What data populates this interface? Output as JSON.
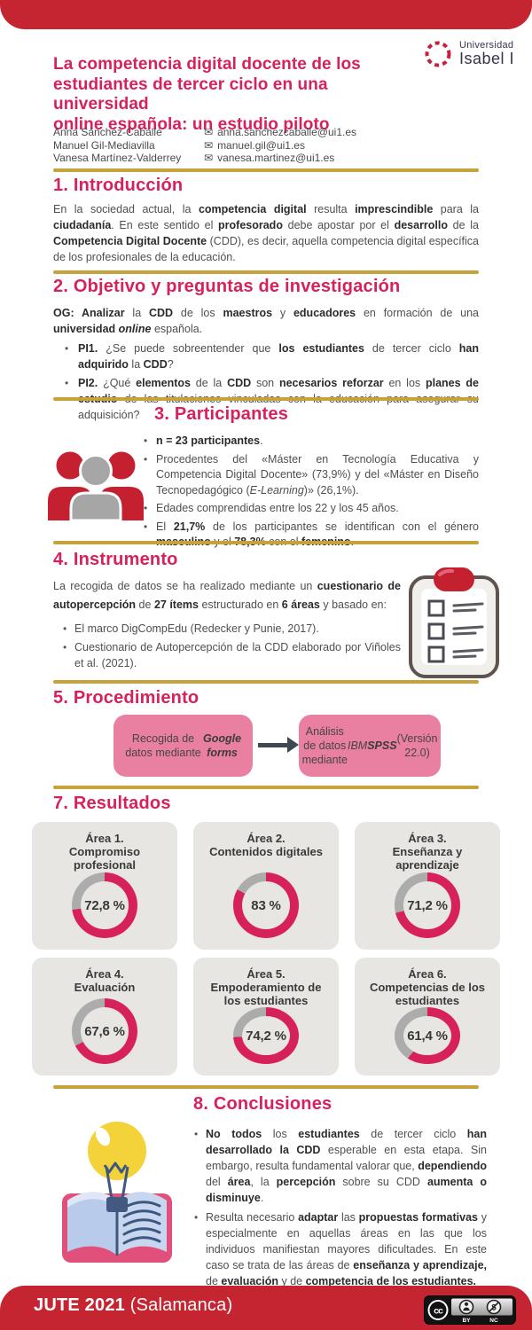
{
  "colors": {
    "bar_red": "#C52531",
    "heading_pink": "#D7215A",
    "gold_divider": "#C7A23B",
    "card_gray": "#E8E6E2",
    "box_pink": "#E980A1",
    "arrow_slate": "#3D4852",
    "body_text": "#4F4F4F",
    "logo_navy": "#35354A"
  },
  "header": {
    "logo": {
      "line1": "Universidad",
      "line2": "Isabel I"
    },
    "title_lines": [
      "La competencia digital docente de los",
      "estudiantes de tercer ciclo en una universidad",
      "online española: un estudio piloto"
    ],
    "authors": [
      {
        "name": "Anna Sánchez-Caballé",
        "email": "anna.sanchezcaballe@ui1.es"
      },
      {
        "name": "Manuel Gil-Mediavilla",
        "email": "manuel.gil@ui1.es"
      },
      {
        "name": "Vanesa Martínez-Valderrey",
        "email": "vanesa.martinez@ui1.es"
      }
    ],
    "email_icon_glyph": "✉"
  },
  "sections": {
    "intro": {
      "heading": "1. Introducción",
      "paragraph": [
        {
          "t": "En la sociedad actual, la "
        },
        {
          "t": "competencia digital",
          "s": "b"
        },
        {
          "t": " resulta "
        },
        {
          "t": "imprescindible",
          "s": "b"
        },
        {
          "t": " para la "
        },
        {
          "t": "ciudadanía",
          "s": "b"
        },
        {
          "t": ". En este sentido el "
        },
        {
          "t": "profesorado",
          "s": "b"
        },
        {
          "t": " debe apostar por el "
        },
        {
          "t": "desarrollo",
          "s": "b"
        },
        {
          "t": " de la "
        },
        {
          "t": "Competencia Digital Docente",
          "s": "b"
        },
        {
          "t": " (CDD), es decir, aquella competencia digital específica de los profesionales de la educación."
        }
      ]
    },
    "objetivo": {
      "heading": "2. Objetivo y preguntas de investigación",
      "lead": [
        {
          "t": "OG: Analizar",
          "s": "b"
        },
        {
          "t": " la "
        },
        {
          "t": "CDD",
          "s": "b"
        },
        {
          "t": " de los "
        },
        {
          "t": "maestros",
          "s": "b"
        },
        {
          "t": " y "
        },
        {
          "t": "educadores",
          "s": "b"
        },
        {
          "t": " en formación de una "
        },
        {
          "t": "universidad",
          "s": "b"
        },
        {
          "t": " "
        },
        {
          "t": "online",
          "s": "bi"
        },
        {
          "t": " española."
        }
      ],
      "bullets": [
        [
          {
            "t": "PI1.",
            "s": "b"
          },
          {
            "t": " ¿Se puede sobreentender que "
          },
          {
            "t": "los estudiantes",
            "s": "b"
          },
          {
            "t": " de tercer ciclo "
          },
          {
            "t": "han adquirido",
            "s": "b"
          },
          {
            "t": " la "
          },
          {
            "t": "CDD",
            "s": "b"
          },
          {
            "t": "?"
          }
        ],
        [
          {
            "t": "PI2.",
            "s": "b"
          },
          {
            "t": " ¿Qué "
          },
          {
            "t": "elementos",
            "s": "b"
          },
          {
            "t": " de la "
          },
          {
            "t": "CDD",
            "s": "b"
          },
          {
            "t": " son "
          },
          {
            "t": "necesarios reforzar",
            "s": "b"
          },
          {
            "t": " en los "
          },
          {
            "t": "planes de estudio",
            "s": "b"
          },
          {
            "t": " de las titulaciones vinculadas con la educación para asegurar su adquisición?"
          }
        ]
      ]
    },
    "participantes": {
      "heading": "3. Participantes",
      "bullets": [
        [
          {
            "t": "n = 23 participantes",
            "s": "b"
          },
          {
            "t": "."
          }
        ],
        [
          {
            "t": "Procedentes del «Máster en Tecnología Educativa y Competencia Digital Docente» (73,9%) y del «Máster en Diseño Tecnopedagógico ("
          },
          {
            "t": "E-Learning",
            "s": "i"
          },
          {
            "t": ")» (26,1%)."
          }
        ],
        [
          {
            "t": "Edades comprendidas entre los 22 y los 45 años."
          }
        ],
        [
          {
            "t": "El "
          },
          {
            "t": "21,7%",
            "s": "b"
          },
          {
            "t": " de los participantes se identifican con el género "
          },
          {
            "t": "masculino",
            "s": "b"
          },
          {
            "t": " y el "
          },
          {
            "t": "78,3%",
            "s": "b"
          },
          {
            "t": " con el "
          },
          {
            "t": "femenino",
            "s": "b"
          },
          {
            "t": "."
          }
        ]
      ]
    },
    "instrumento": {
      "heading": "4. Instrumento",
      "lead": [
        {
          "t": "La recogida de datos se ha realizado mediante un "
        },
        {
          "t": "cuestionario de autopercepción",
          "s": "b"
        },
        {
          "t": " de "
        },
        {
          "t": "27 ítems",
          "s": "b"
        },
        {
          "t": " estructurado en "
        },
        {
          "t": "6 áreas",
          "s": "b"
        },
        {
          "t": " y basado en:"
        }
      ],
      "bullets": [
        [
          {
            "t": "El marco DigCompEdu (Redecker y Punie, 2017)."
          }
        ],
        [
          {
            "t": "Cuestionario de Autopercepción de la CDD elaborado por Viñoles et al. (2021)."
          }
        ]
      ]
    },
    "procedimiento": {
      "heading": "5. Procedimiento",
      "box1": [
        {
          "t": "Recogida de datos mediante "
        },
        {
          "t": "Google forms",
          "s": "bi"
        }
      ],
      "box2": [
        {
          "t": "Análisis de datos mediante "
        },
        {
          "t": "IBM",
          "s": "i"
        },
        {
          "t": " "
        },
        {
          "t": "SPSS",
          "s": "bi"
        },
        {
          "t": " (Versión 22.0)"
        }
      ]
    },
    "resultados": {
      "heading": "7. Resultados"
    },
    "conclusiones": {
      "heading": "8. Conclusiones",
      "bullets": [
        [
          {
            "t": "No todos",
            "s": "b"
          },
          {
            "t": " los "
          },
          {
            "t": "estudiantes",
            "s": "b"
          },
          {
            "t": " de tercer ciclo "
          },
          {
            "t": "han desarrollado la CDD",
            "s": "b"
          },
          {
            "t": " esperable en esta etapa. Sin embargo, resulta fundamental valorar que, "
          },
          {
            "t": "dependiendo",
            "s": "b"
          },
          {
            "t": " del "
          },
          {
            "t": "área",
            "s": "b"
          },
          {
            "t": ", la "
          },
          {
            "t": "percepción",
            "s": "b"
          },
          {
            "t": " sobre su CDD "
          },
          {
            "t": "aumenta o disminuye",
            "s": "b"
          },
          {
            "t": "."
          }
        ],
        [
          {
            "t": "Resulta necesario "
          },
          {
            "t": "adaptar",
            "s": "b"
          },
          {
            "t": " las "
          },
          {
            "t": "propuestas formativas",
            "s": "b"
          },
          {
            "t": " y especialmente en aquellas áreas en las que los individuos manifiestan mayores dificultades. En este caso se trata de las áreas de "
          },
          {
            "t": "enseñanza y aprendizaje,",
            "s": "b"
          },
          {
            "t": " de "
          },
          {
            "t": "evaluación",
            "s": "b"
          },
          {
            "t": " y de "
          },
          {
            "t": "competencia de los estudiantes.",
            "s": "b"
          }
        ]
      ]
    }
  },
  "chart_data": {
    "type": "pie",
    "subtype": "donut-gauges",
    "title": "7. Resultados",
    "categories": [
      "Área 1. Compromiso profesional",
      "Área 2. Contenidos digitales",
      "Área 3. Enseñanza y aprendizaje",
      "Área 4. Evaluación",
      "Área 5. Empoderamiento de los estudiantes",
      "Área 6. Competencias de los estudiantes"
    ],
    "values": [
      72.8,
      83,
      71.2,
      67.6,
      74.2,
      61.4
    ],
    "unit": "%",
    "colors": {
      "filled": "#D7215A",
      "remainder": "#ACACAC"
    },
    "gauges": [
      {
        "title_lines": [
          "Área 1.",
          "Compromiso",
          "profesional"
        ],
        "value": 72.8,
        "label": "72,8 %"
      },
      {
        "title_lines": [
          "Área 2.",
          "Contenidos digitales"
        ],
        "value": 83,
        "label": "83 %"
      },
      {
        "title_lines": [
          "Área 3.",
          "Enseñanza y",
          "aprendizaje"
        ],
        "value": 71.2,
        "label": "71,2 %"
      },
      {
        "title_lines": [
          "Área 4.",
          "Evaluación"
        ],
        "value": 67.6,
        "label": "67,6 %"
      },
      {
        "title_lines": [
          "Área 5.",
          "Empoderamiento de",
          "los estudiantes"
        ],
        "value": 74.2,
        "label": "74,2 %"
      },
      {
        "title_lines": [
          "Área 6.",
          "Competencias de los",
          "estudiantes"
        ],
        "value": 61.4,
        "label": "61,4 %"
      }
    ]
  },
  "footer": {
    "text": [
      {
        "t": "JUTE 2021 ",
        "s": "b"
      },
      {
        "t": "(Salamanca)"
      }
    ],
    "license": {
      "cc": "cc",
      "by": "BY",
      "nc": "NC"
    }
  }
}
